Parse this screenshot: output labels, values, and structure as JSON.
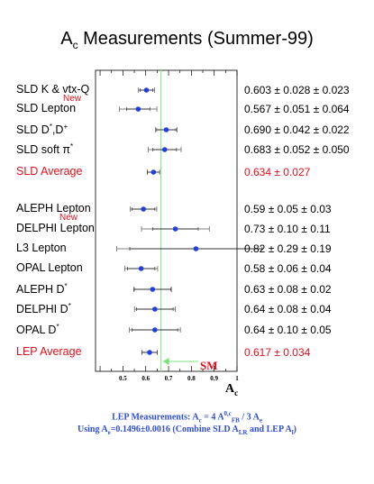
{
  "title_main": "A",
  "title_sub": "c",
  "title_rest": " Measurements (Summer-99)",
  "new_tag": "New",
  "sm_label": "SM",
  "axis_label_main": "A",
  "axis_label_sub": "c",
  "footer": {
    "line1_a": "LEP Measurements: A",
    "line1_b": "c",
    "line1_c": " = 4 A",
    "line1_d": "0,c",
    "line1_e": "FB",
    "line1_f": " / 3 A",
    "line1_g": "e",
    "line2_a": "Using A",
    "line2_b": "e",
    "line2_c": "=0.1496±0.0016 (Combine SLD A",
    "line2_d": "LR",
    "line2_e": " and LEP A",
    "line2_f": "l",
    "line2_g": ")"
  },
  "colors": {
    "marker": "#1f3fe0",
    "average_text": "#e0101a",
    "sm_line": "#7be07b",
    "frame": "#000000"
  },
  "chart_data": {
    "type": "scatter",
    "title": "Ac Measurements (Summer-99)",
    "xlabel": "Ac",
    "xlim": [
      0.38,
      1.0
    ],
    "xticks": [
      "0.5",
      "0.6",
      "0.7",
      "0.8",
      "0.9",
      "1"
    ],
    "sm_value": 0.667,
    "measurements": [
      {
        "label": "SLD K & vtx-Q",
        "value": 0.603,
        "stat": 0.028,
        "syst": 0.023,
        "text": "0.603 ± 0.028 ± 0.023",
        "new": true,
        "average": false
      },
      {
        "label": "SLD Lepton",
        "value": 0.567,
        "stat": 0.051,
        "syst": 0.064,
        "text": "0.567 ± 0.051 ± 0.064",
        "new": false,
        "average": false
      },
      {
        "label": "SLD D*,D+",
        "value": 0.69,
        "stat": 0.042,
        "syst": 0.022,
        "text": "0.690 ± 0.042 ± 0.022",
        "new": false,
        "average": false
      },
      {
        "label": "SLD soft π*",
        "value": 0.683,
        "stat": 0.052,
        "syst": 0.05,
        "text": "0.683 ± 0.052 ± 0.050",
        "new": false,
        "average": false
      },
      {
        "label": "SLD Average",
        "value": 0.634,
        "stat": 0.027,
        "syst": 0,
        "text": "0.634 ± 0.027",
        "new": false,
        "average": true
      },
      {
        "label": "ALEPH Lepton",
        "value": 0.59,
        "stat": 0.05,
        "syst": 0.03,
        "text": "0.59 ± 0.05 ± 0.03",
        "new": true,
        "average": false
      },
      {
        "label": "DELPHI Lepton",
        "value": 0.73,
        "stat": 0.1,
        "syst": 0.11,
        "text": "0.73 ± 0.10 ± 0.11",
        "new": false,
        "average": false
      },
      {
        "label": "L3 Lepton",
        "value": 0.82,
        "stat": 0.29,
        "syst": 0.19,
        "text": "0.82 ± 0.29 ± 0.19",
        "new": false,
        "average": false
      },
      {
        "label": "OPAL Lepton",
        "value": 0.58,
        "stat": 0.06,
        "syst": 0.04,
        "text": "0.58 ± 0.06 ± 0.04",
        "new": false,
        "average": false
      },
      {
        "label": "ALEPH D*",
        "value": 0.63,
        "stat": 0.08,
        "syst": 0.02,
        "text": "0.63 ± 0.08 ± 0.02",
        "new": false,
        "average": false
      },
      {
        "label": "DELPHI D*",
        "value": 0.64,
        "stat": 0.08,
        "syst": 0.04,
        "text": "0.64 ± 0.08 ± 0.04",
        "new": false,
        "average": false
      },
      {
        "label": "OPAL D*",
        "value": 0.64,
        "stat": 0.1,
        "syst": 0.05,
        "text": "0.64 ± 0.10 ± 0.05",
        "new": false,
        "average": false
      },
      {
        "label": "LEP Average",
        "value": 0.617,
        "stat": 0.034,
        "syst": 0,
        "text": "0.617 ± 0.034",
        "new": false,
        "average": true
      }
    ]
  }
}
